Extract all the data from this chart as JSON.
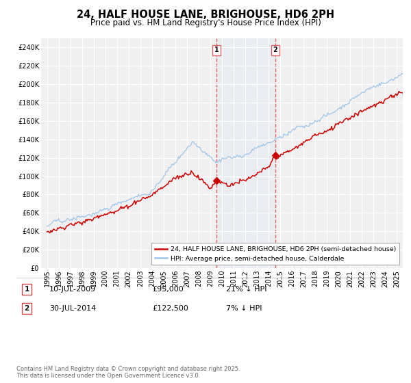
{
  "title": "24, HALF HOUSE LANE, BRIGHOUSE, HD6 2PH",
  "subtitle": "Price paid vs. HM Land Registry's House Price Index (HPI)",
  "ylim": [
    0,
    250000
  ],
  "yticks": [
    0,
    20000,
    40000,
    60000,
    80000,
    100000,
    120000,
    140000,
    160000,
    180000,
    200000,
    220000,
    240000
  ],
  "xlim_start": 1994.5,
  "xlim_end": 2025.5,
  "purchase1_date": 2009.53,
  "purchase1_price": 95000,
  "purchase2_date": 2014.58,
  "purchase2_price": 122500,
  "hpi_color": "#9fc5e8",
  "price_color": "#cc0000",
  "vline_color": "#e06666",
  "shade_color": "#dce9f7",
  "legend1": "24, HALF HOUSE LANE, BRIGHOUSE, HD6 2PH (semi-detached house)",
  "legend2": "HPI: Average price, semi-detached house, Calderdale",
  "table_row1": [
    "1",
    "10-JUL-2009",
    "£95,000",
    "21% ↓ HPI"
  ],
  "table_row2": [
    "2",
    "30-JUL-2014",
    "£122,500",
    "7% ↓ HPI"
  ],
  "footnote": "Contains HM Land Registry data © Crown copyright and database right 2025.\nThis data is licensed under the Open Government Licence v3.0.",
  "background_color": "#ffffff",
  "plot_bg_color": "#f0f0f0"
}
